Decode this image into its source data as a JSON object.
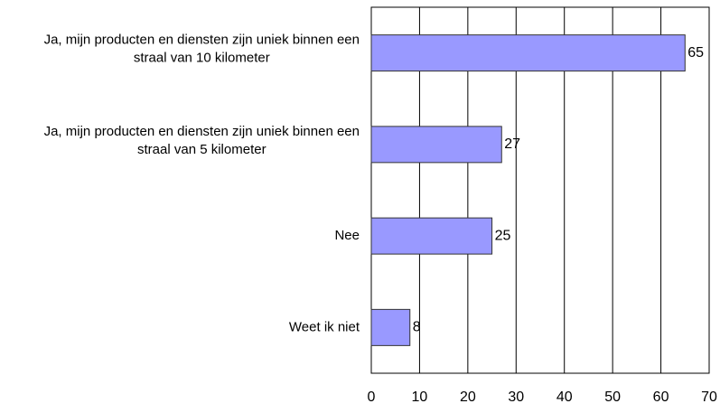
{
  "chart_data": {
    "type": "bar",
    "orientation": "horizontal",
    "categories": [
      "Ja, mijn producten en diensten zijn uniek binnen een straal van 10 kilometer",
      "Ja, mijn producten en diensten zijn uniek binnen een straal van 5 kilometer",
      "Nee",
      "Weet ik niet"
    ],
    "values": [
      65,
      27,
      25,
      8
    ],
    "color": "#9999ff",
    "xlim": [
      0,
      70
    ],
    "xticks": [
      0,
      10,
      20,
      30,
      40,
      50,
      60,
      70
    ],
    "grid": true
  }
}
